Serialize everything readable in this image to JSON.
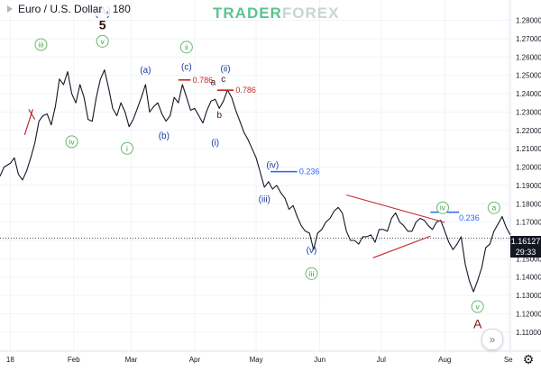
{
  "header": {
    "symbol": "Euro / U.S. Dollar",
    "separator": ",",
    "interval": "180",
    "watermark_part1": "TRADER",
    "watermark_part2": "FOREX"
  },
  "chart_data": {
    "type": "line",
    "ylim": [
      1.1045,
      1.2857
    ],
    "yticks": [
      1.28,
      1.27,
      1.26,
      1.25,
      1.24,
      1.23,
      1.22,
      1.21,
      1.2,
      1.19,
      1.18,
      1.17,
      1.16,
      1.15,
      1.14,
      1.13,
      1.12,
      1.11
    ],
    "ytick_labels": [
      "1.28000",
      "1.27000",
      "1.26000",
      "1.25000",
      "1.24000",
      "1.23000",
      "1.22000",
      "1.21000",
      "1.20000",
      "1.19000",
      "1.18000",
      "1.17000",
      "1.16000",
      "1.15000",
      "1.14000",
      "1.13000",
      "1.12000",
      "1.11000"
    ],
    "xlim": [
      "2017-12-27",
      "2018-09-02"
    ],
    "xticks": [
      {
        "date": "2018-01-01",
        "label": "18"
      },
      {
        "date": "2018-02-01",
        "label": "Feb"
      },
      {
        "date": "2018-03-01",
        "label": "Mar"
      },
      {
        "date": "2018-04-01",
        "label": "Apr"
      },
      {
        "date": "2018-05-01",
        "label": "May"
      },
      {
        "date": "2018-06-01",
        "label": "Jun"
      },
      {
        "date": "2018-07-01",
        "label": "Jul"
      },
      {
        "date": "2018-08-01",
        "label": "Aug"
      },
      {
        "date": "2018-09-01",
        "label": "Se"
      }
    ],
    "series": [
      {
        "color": "#131722",
        "x": [
          "2017-12-27",
          "2017-12-29",
          "2018-01-01",
          "2018-01-03",
          "2018-01-05",
          "2018-01-07",
          "2018-01-09",
          "2018-01-11",
          "2018-01-13",
          "2018-01-15",
          "2018-01-17",
          "2018-01-19",
          "2018-01-21",
          "2018-01-23",
          "2018-01-25",
          "2018-01-27",
          "2018-01-29",
          "2018-01-31",
          "2018-02-02",
          "2018-02-04",
          "2018-02-06",
          "2018-02-08",
          "2018-02-10",
          "2018-02-12",
          "2018-02-14",
          "2018-02-16",
          "2018-02-18",
          "2018-02-20",
          "2018-02-22",
          "2018-02-24",
          "2018-02-26",
          "2018-02-28",
          "2018-03-02",
          "2018-03-04",
          "2018-03-06",
          "2018-03-08",
          "2018-03-10",
          "2018-03-12",
          "2018-03-14",
          "2018-03-16",
          "2018-03-18",
          "2018-03-20",
          "2018-03-22",
          "2018-03-24",
          "2018-03-26",
          "2018-03-28",
          "2018-03-30",
          "2018-04-01",
          "2018-04-03",
          "2018-04-05",
          "2018-04-07",
          "2018-04-09",
          "2018-04-11",
          "2018-04-13",
          "2018-04-15",
          "2018-04-17",
          "2018-04-19",
          "2018-04-21",
          "2018-04-23",
          "2018-04-25",
          "2018-04-27",
          "2018-04-29",
          "2018-05-01",
          "2018-05-03",
          "2018-05-05",
          "2018-05-07",
          "2018-05-09",
          "2018-05-11",
          "2018-05-13",
          "2018-05-15",
          "2018-05-17",
          "2018-05-19",
          "2018-05-21",
          "2018-05-23",
          "2018-05-25",
          "2018-05-27",
          "2018-05-29",
          "2018-05-31",
          "2018-06-02",
          "2018-06-04",
          "2018-06-06",
          "2018-06-08",
          "2018-06-10",
          "2018-06-12",
          "2018-06-14",
          "2018-06-16",
          "2018-06-18",
          "2018-06-20",
          "2018-06-22",
          "2018-06-24",
          "2018-06-26",
          "2018-06-28",
          "2018-06-30",
          "2018-07-02",
          "2018-07-04",
          "2018-07-06",
          "2018-07-08",
          "2018-07-10",
          "2018-07-12",
          "2018-07-14",
          "2018-07-16",
          "2018-07-18",
          "2018-07-20",
          "2018-07-22",
          "2018-07-24",
          "2018-07-26",
          "2018-07-28",
          "2018-07-30",
          "2018-08-01",
          "2018-08-03",
          "2018-08-05",
          "2018-08-07",
          "2018-08-09",
          "2018-08-11",
          "2018-08-13",
          "2018-08-15",
          "2018-08-17",
          "2018-08-19",
          "2018-08-21",
          "2018-08-23",
          "2018-08-25",
          "2018-08-27",
          "2018-08-29",
          "2018-08-31",
          "2018-09-02"
        ],
        "y": [
          1.195,
          1.2,
          1.202,
          1.205,
          1.196,
          1.193,
          1.198,
          1.205,
          1.213,
          1.225,
          1.228,
          1.229,
          1.223,
          1.233,
          1.248,
          1.245,
          1.252,
          1.24,
          1.235,
          1.245,
          1.238,
          1.226,
          1.225,
          1.238,
          1.248,
          1.253,
          1.243,
          1.232,
          1.228,
          1.235,
          1.23,
          1.222,
          1.226,
          1.232,
          1.238,
          1.245,
          1.23,
          1.233,
          1.235,
          1.229,
          1.225,
          1.228,
          1.238,
          1.235,
          1.245,
          1.238,
          1.231,
          1.232,
          1.228,
          1.224,
          1.231,
          1.236,
          1.237,
          1.232,
          1.236,
          1.242,
          1.238,
          1.231,
          1.225,
          1.219,
          1.215,
          1.21,
          1.205,
          1.197,
          1.189,
          1.192,
          1.188,
          1.19,
          1.186,
          1.183,
          1.177,
          1.179,
          1.173,
          1.168,
          1.165,
          1.164,
          1.155,
          1.164,
          1.166,
          1.17,
          1.172,
          1.176,
          1.178,
          1.175,
          1.165,
          1.16,
          1.16,
          1.158,
          1.162,
          1.162,
          1.163,
          1.159,
          1.166,
          1.166,
          1.165,
          1.172,
          1.175,
          1.17,
          1.168,
          1.165,
          1.165,
          1.17,
          1.172,
          1.171,
          1.168,
          1.166,
          1.17,
          1.171,
          1.165,
          1.159,
          1.155,
          1.158,
          1.162,
          1.147,
          1.138,
          1.132,
          1.138,
          1.145,
          1.156,
          1.158,
          1.165,
          1.169,
          1.173,
          1.167,
          1.163
        ]
      }
    ],
    "wave_labels_circle_green": [
      {
        "text": "iii",
        "x": "2018-01-16",
        "y": 1.2668
      },
      {
        "text": "v",
        "x": "2018-02-15",
        "y": 1.2686
      },
      {
        "text": "ii",
        "x": "2018-03-28",
        "y": 1.2654
      },
      {
        "text": "iv",
        "x": "2018-01-31",
        "y": 1.2138
      },
      {
        "text": "i",
        "x": "2018-02-27",
        "y": 1.2102
      },
      {
        "text": "iii",
        "x": "2018-05-28",
        "y": 1.1419
      },
      {
        "text": "iv",
        "x": "2018-07-31",
        "y": 1.1778
      },
      {
        "text": "a",
        "x": "2018-08-25",
        "y": 1.1778
      },
      {
        "text": "v",
        "x": "2018-08-17",
        "y": 1.1239
      }
    ],
    "wave_labels_blue": [
      {
        "text": "(A)",
        "x": "2018-02-15",
        "y": 1.2848
      },
      {
        "text": "(a)",
        "x": "2018-03-08",
        "y": 1.2532
      },
      {
        "text": "(c)",
        "x": "2018-03-28",
        "y": 1.2551
      },
      {
        "text": "(ii)",
        "x": "2018-04-16",
        "y": 1.2541
      },
      {
        "text": "(b)",
        "x": "2018-03-17",
        "y": 1.2175
      },
      {
        "text": "(i)",
        "x": "2018-04-11",
        "y": 1.2138
      },
      {
        "text": "(iv)",
        "x": "2018-05-09",
        "y": 1.2016
      },
      {
        "text": "(iii)",
        "x": "2018-05-05",
        "y": 1.1829
      },
      {
        "text": "(v)",
        "x": "2018-05-28",
        "y": 1.1551
      }
    ],
    "wave_labels_dark": [
      {
        "text": "5",
        "x": "2018-02-15",
        "y": 1.2772
      },
      {
        "text": "a",
        "x": "2018-04-10",
        "y": 1.2466
      },
      {
        "text": "c",
        "x": "2018-04-15",
        "y": 1.2485
      },
      {
        "text": "b",
        "x": "2018-04-13",
        "y": 1.2288
      }
    ],
    "wave_labels_red_big": [
      {
        "text": "A",
        "x": "2018-08-17",
        "y": 1.1145
      }
    ],
    "annotations": [
      {
        "text": "0.786",
        "color": "#c62828",
        "x": "2018-03-31",
        "y": 1.2475
      },
      {
        "text": "0.786",
        "color": "#c62828",
        "x": "2018-04-21",
        "y": 1.2419
      },
      {
        "text": "0.236",
        "color": "#2962ff",
        "x": "2018-05-22",
        "y": 1.1975
      },
      {
        "text": "0.236",
        "color": "#2962ff",
        "x": "2018-08-08",
        "y": 1.1722
      }
    ],
    "level_lines": [
      {
        "color": "#c62828",
        "y": 1.2475,
        "x1": "2018-03-24",
        "x2": "2018-03-30"
      },
      {
        "color": "#c62828",
        "y": 1.2419,
        "x1": "2018-04-12",
        "x2": "2018-04-20"
      },
      {
        "color": "#2962ff",
        "y": 1.1975,
        "x1": "2018-05-08",
        "x2": "2018-05-21"
      },
      {
        "color": "#2962ff",
        "y": 1.1754,
        "x1": "2018-07-25",
        "x2": "2018-08-08"
      }
    ],
    "trend_lines": [
      {
        "color": "#b71c1c",
        "x1": "2018-01-08",
        "y1": 1.2175,
        "x2": "2018-01-12",
        "y2": 1.2315
      },
      {
        "color": "#b71c1c",
        "x1": "2018-01-10",
        "y1": 1.2315,
        "x2": "2018-01-13",
        "y2": 1.226
      },
      {
        "color": "#c62828",
        "x1": "2018-06-14",
        "y1": 1.1848,
        "x2": "2018-08-01",
        "y2": 1.1698
      },
      {
        "color": "#c62828",
        "x1": "2018-06-27",
        "y1": 1.1505,
        "x2": "2018-07-25",
        "y2": 1.1623
      }
    ],
    "last_price_label": "1.16127",
    "countdown_label": "29:33",
    "last_price": 1.16127,
    "grid": true,
    "legend": "none"
  },
  "controls": {
    "scroll_glyph": "»",
    "gear_glyph": "⚙"
  }
}
